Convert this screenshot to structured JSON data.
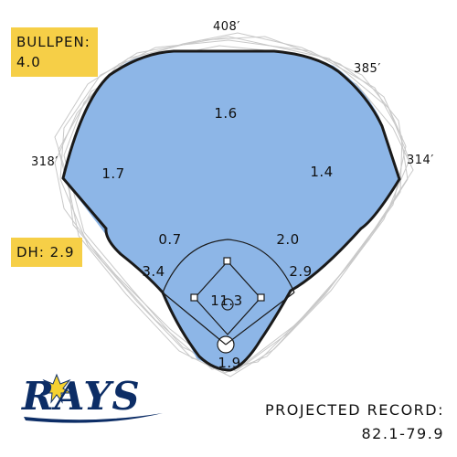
{
  "dimensions": {
    "center": "408′",
    "right_center": "385′",
    "left_line": "318′",
    "right_line": "314′"
  },
  "positions": {
    "cf": "1.6",
    "lf": "1.7",
    "rf": "1.4",
    "ss": "0.7",
    "second_base": "2.0",
    "third_base": "3.4",
    "first_base": "2.9",
    "pitcher": "11.3",
    "catcher": "1.9"
  },
  "bullpen": {
    "label": "BULLPEN:",
    "value": "4.0"
  },
  "dh": {
    "text": "DH: 2.9"
  },
  "logo": {
    "text": "RAYS"
  },
  "record": {
    "label": "PROJECTED RECORD:",
    "value": "82.1-79.9"
  },
  "colors": {
    "field": "#8db6e7",
    "outline": "#1a1a1a",
    "card": "#f6cf47",
    "logo_navy": "#0c2d66",
    "logo_gold": "#f5d130"
  }
}
